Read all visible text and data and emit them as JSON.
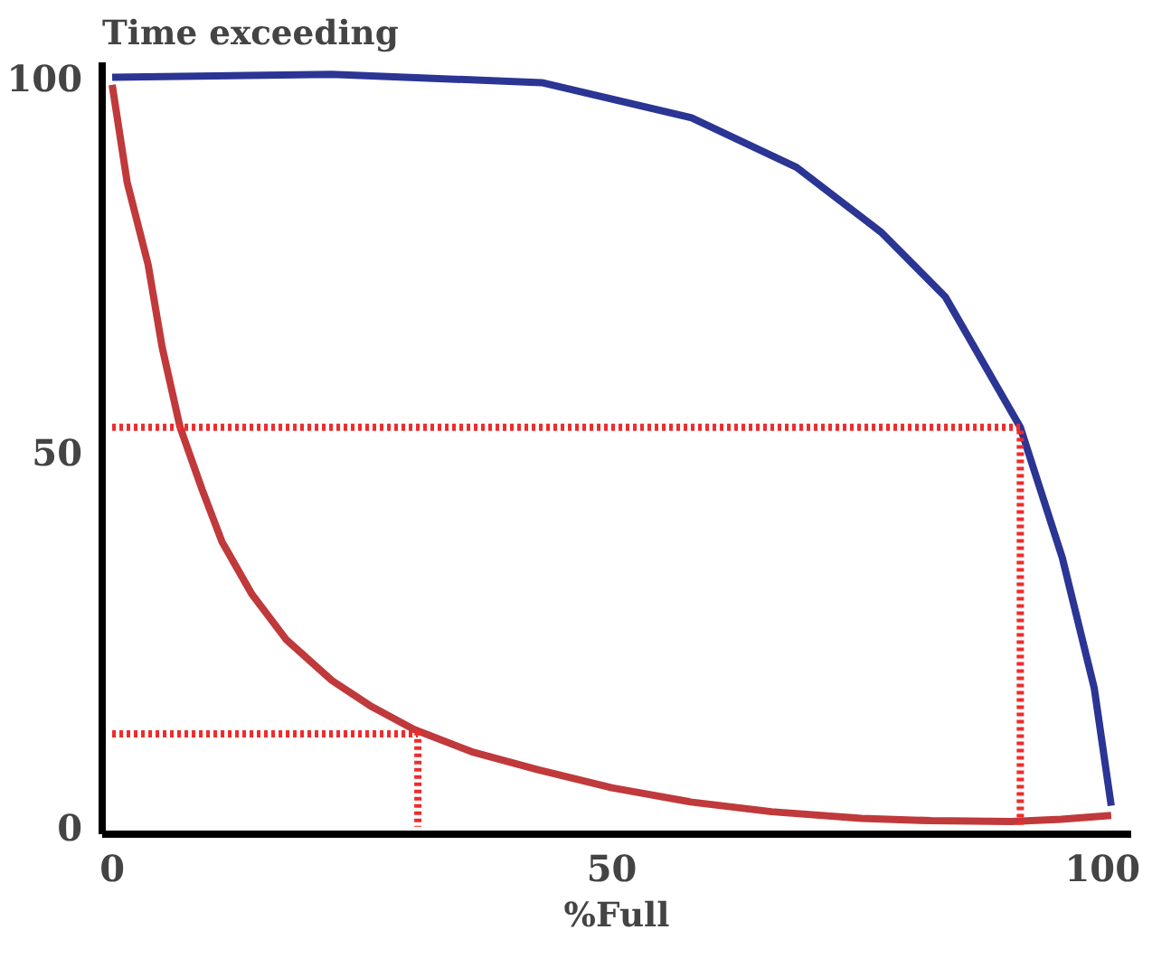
{
  "chart_data": {
    "type": "line",
    "xlabel": "%Full",
    "ylabel": "Time exceeding",
    "xlim": [
      -1,
      102
    ],
    "ylim": [
      -1,
      102
    ],
    "xticks": [
      0,
      50,
      100
    ],
    "yticks": [
      0,
      50,
      100
    ],
    "grid": false,
    "marker": "none",
    "series": [
      {
        "color": "#2b3594",
        "line_style": "solid",
        "x": [
          0,
          22,
          43,
          58,
          68.5,
          77,
          83.4,
          90.9,
          95.1,
          98.3,
          100
        ],
        "values": [
          100,
          100.4,
          99.3,
          94.6,
          88,
          79.3,
          70.7,
          53.3,
          35.9,
          18.5,
          2.8
        ]
      },
      {
        "color": "#c0393b",
        "line_style": "solid",
        "x": [
          0,
          1.5,
          3.6,
          5,
          6.8,
          9,
          11,
          14,
          17.4,
          22,
          26,
          30.2,
          36,
          42.6,
          50,
          57.9,
          66,
          75,
          82,
          90,
          95,
          100
        ],
        "values": [
          99,
          86,
          75,
          64,
          53.3,
          45,
          38,
          31,
          25,
          19.5,
          16,
          13,
          10,
          7.6,
          5.2,
          3.3,
          2,
          1.1,
          0.8,
          0.7,
          1,
          1.5
        ]
      },
      {
        "color": "#ee2b2b",
        "line_style": "dotted",
        "x": [
          0,
          90.9,
          90.9
        ],
        "values": [
          53.3,
          53.3,
          0
        ]
      },
      {
        "color": "#ee2b2b",
        "line_style": "dotted",
        "x": [
          0,
          30.6,
          30.6
        ],
        "values": [
          12.4,
          12.4,
          0
        ]
      }
    ]
  }
}
